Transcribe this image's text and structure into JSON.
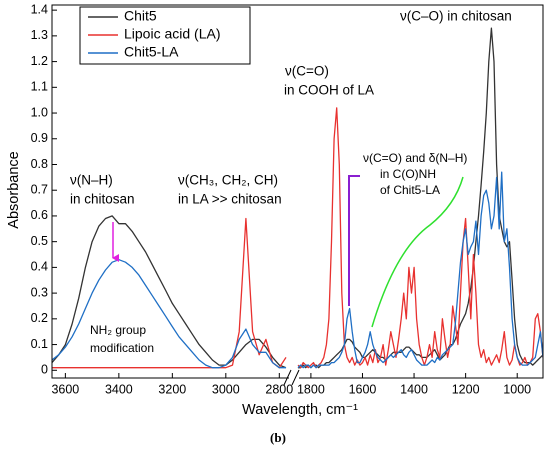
{
  "chart_data": {
    "type": "line",
    "xlabel": "Wavelength, cm⁻¹",
    "ylabel": "Absorbance",
    "caption": "(b)",
    "xlim": [
      3650,
      900
    ],
    "xbreak": [
      2760,
      1850
    ],
    "xticks": [
      3600,
      3400,
      3200,
      3000,
      2800,
      1800,
      1600,
      1400,
      1200,
      1000
    ],
    "ylim": [
      -0.03,
      1.42
    ],
    "yticks": [
      0,
      0.1,
      0.2,
      0.3,
      0.4,
      0.5,
      0.6,
      0.7,
      0.8,
      0.9,
      {
        "value": 1,
        "label": "1.0"
      },
      1.1,
      1.2,
      1.3,
      1.4
    ],
    "legend": "upper left",
    "annotations": [
      "ν(C–O) in chitosan",
      "ν(C=O)",
      "in COOH of LA",
      "ν(N–H)",
      "in chitosan",
      "ν(CH₃, CH₂, CH)",
      "in LA >> chitosan",
      "ν(C=O) and δ(N–H)",
      "in C(O)NH",
      "of Chit5-LA",
      "NH₂ group",
      "modification"
    ],
    "x": [
      3650,
      3625,
      3600,
      3575,
      3550,
      3525,
      3500,
      3475,
      3450,
      3425,
      3400,
      3375,
      3350,
      3325,
      3300,
      3275,
      3250,
      3225,
      3200,
      3175,
      3150,
      3125,
      3100,
      3075,
      3050,
      3025,
      3000,
      2975,
      2950,
      2925,
      2900,
      2875,
      2850,
      2825,
      2800,
      2775,
      1850,
      1840,
      1830,
      1820,
      1810,
      1800,
      1790,
      1780,
      1770,
      1760,
      1750,
      1740,
      1730,
      1720,
      1710,
      1700,
      1690,
      1680,
      1670,
      1660,
      1650,
      1640,
      1630,
      1620,
      1610,
      1600,
      1590,
      1580,
      1570,
      1560,
      1550,
      1540,
      1530,
      1520,
      1510,
      1500,
      1490,
      1480,
      1470,
      1460,
      1450,
      1440,
      1430,
      1420,
      1410,
      1400,
      1390,
      1380,
      1370,
      1360,
      1350,
      1340,
      1330,
      1320,
      1310,
      1300,
      1290,
      1280,
      1270,
      1260,
      1250,
      1240,
      1230,
      1220,
      1210,
      1200,
      1190,
      1180,
      1170,
      1160,
      1150,
      1140,
      1130,
      1120,
      1110,
      1100,
      1090,
      1080,
      1070,
      1060,
      1050,
      1040,
      1030,
      1020,
      1010,
      1000,
      990,
      980,
      970,
      960,
      950,
      940,
      930,
      920,
      910,
      900
    ],
    "series": [
      {
        "name": "Chit5",
        "color": "#333333",
        "values": [
          0.03,
          0.06,
          0.1,
          0.18,
          0.28,
          0.4,
          0.5,
          0.56,
          0.59,
          0.6,
          0.57,
          0.57,
          0.54,
          0.5,
          0.46,
          0.41,
          0.36,
          0.31,
          0.26,
          0.22,
          0.18,
          0.14,
          0.1,
          0.07,
          0.04,
          0.02,
          0.02,
          0.04,
          0.07,
          0.1,
          0.12,
          0.12,
          0.09,
          0.05,
          0.02,
          0.01,
          0.01,
          0.01,
          0.02,
          0.01,
          0.02,
          0.01,
          0.02,
          0.02,
          0.01,
          0.02,
          0.02,
          0.03,
          0.03,
          0.04,
          0.05,
          0.06,
          0.07,
          0.08,
          0.1,
          0.12,
          0.12,
          0.11,
          0.09,
          0.08,
          0.07,
          0.05,
          0.05,
          0.06,
          0.07,
          0.08,
          0.07,
          0.06,
          0.05,
          0.05,
          0.04,
          0.05,
          0.06,
          0.07,
          0.07,
          0.07,
          0.07,
          0.08,
          0.09,
          0.09,
          0.08,
          0.07,
          0.06,
          0.06,
          0.05,
          0.05,
          0.05,
          0.06,
          0.07,
          0.08,
          0.06,
          0.04,
          0.05,
          0.06,
          0.08,
          0.1,
          0.1,
          0.12,
          0.15,
          0.18,
          0.2,
          0.22,
          0.26,
          0.32,
          0.4,
          0.5,
          0.6,
          0.72,
          0.85,
          1.0,
          1.2,
          1.33,
          1.2,
          0.8,
          0.6,
          0.55,
          0.5,
          0.48,
          0.5,
          0.35,
          0.2,
          0.1,
          0.06,
          0.04,
          0.03,
          0.03,
          0.03,
          0.02,
          0.03,
          0.04,
          0.05,
          0.06
        ]
      },
      {
        "name": "Lipoic acid (LA)",
        "color": "#e8312f",
        "values": [
          0.01,
          0.01,
          0.01,
          0.01,
          0.01,
          0.01,
          0.01,
          0.01,
          0.01,
          0.01,
          0.01,
          0.01,
          0.01,
          0.01,
          0.01,
          0.01,
          0.01,
          0.01,
          0.01,
          0.01,
          0.01,
          0.01,
          0.01,
          0.01,
          0.01,
          0.01,
          0.01,
          0.02,
          0.15,
          0.59,
          0.15,
          0.06,
          0.12,
          0.03,
          0.01,
          0.05,
          0.02,
          0.01,
          0.03,
          0.02,
          0.01,
          0.02,
          0.03,
          0.01,
          0.02,
          0.03,
          0.05,
          0.1,
          0.2,
          0.5,
          0.9,
          1.02,
          0.8,
          0.3,
          0.1,
          0.05,
          0.03,
          0.05,
          0.02,
          0.04,
          0.02,
          0.03,
          0.05,
          0.02,
          0.06,
          0.03,
          0.08,
          0.03,
          0.05,
          0.1,
          0.02,
          0.08,
          0.15,
          0.1,
          0.05,
          0.12,
          0.2,
          0.3,
          0.2,
          0.4,
          0.3,
          0.4,
          0.2,
          0.1,
          0.05,
          0.02,
          0.05,
          0.1,
          0.05,
          0.15,
          0.08,
          0.05,
          0.2,
          0.12,
          0.05,
          0.1,
          0.25,
          0.18,
          0.1,
          0.3,
          0.5,
          0.59,
          0.4,
          0.2,
          0.45,
          0.3,
          0.1,
          0.05,
          0.08,
          0.03,
          0.05,
          0.02,
          0.04,
          0.06,
          0.03,
          0.08,
          0.15,
          0.05,
          0.02,
          0.04,
          0.1,
          0.05,
          0.02,
          0.03,
          0.05,
          0.02,
          0.03,
          0.05,
          0.2,
          0.22,
          0.15,
          0.05
        ]
      },
      {
        "name": "Chit5-LA",
        "color": "#1f6fc5",
        "values": [
          0.04,
          0.06,
          0.09,
          0.13,
          0.18,
          0.24,
          0.3,
          0.35,
          0.39,
          0.42,
          0.43,
          0.42,
          0.4,
          0.37,
          0.33,
          0.29,
          0.25,
          0.21,
          0.17,
          0.13,
          0.1,
          0.07,
          0.04,
          0.02,
          0.01,
          0.01,
          0.02,
          0.05,
          0.12,
          0.16,
          0.1,
          0.07,
          0.07,
          0.03,
          0.01,
          0.01,
          0.01,
          0.02,
          0.01,
          0.02,
          0.02,
          0.01,
          0.02,
          0.01,
          0.02,
          0.02,
          0.02,
          0.02,
          0.02,
          0.03,
          0.03,
          0.04,
          0.05,
          0.07,
          0.1,
          0.2,
          0.24,
          0.15,
          0.08,
          0.03,
          0.03,
          0.05,
          0.07,
          0.1,
          0.15,
          0.1,
          0.07,
          0.05,
          0.04,
          0.03,
          0.04,
          0.05,
          0.06,
          0.05,
          0.06,
          0.07,
          0.08,
          0.06,
          0.05,
          0.07,
          0.08,
          0.06,
          0.04,
          0.03,
          0.02,
          0.02,
          0.02,
          0.03,
          0.04,
          0.03,
          0.05,
          0.04,
          0.06,
          0.07,
          0.08,
          0.09,
          0.1,
          0.18,
          0.3,
          0.42,
          0.5,
          0.55,
          0.45,
          0.48,
          0.5,
          0.58,
          0.45,
          0.6,
          0.68,
          0.7,
          0.65,
          0.55,
          0.6,
          0.75,
          0.55,
          0.77,
          0.5,
          0.55,
          0.4,
          0.2,
          0.1,
          0.05,
          0.03,
          0.02,
          0.02,
          0.02,
          0.03,
          0.04,
          0.05,
          0.1,
          0.15,
          0.05
        ]
      }
    ]
  }
}
